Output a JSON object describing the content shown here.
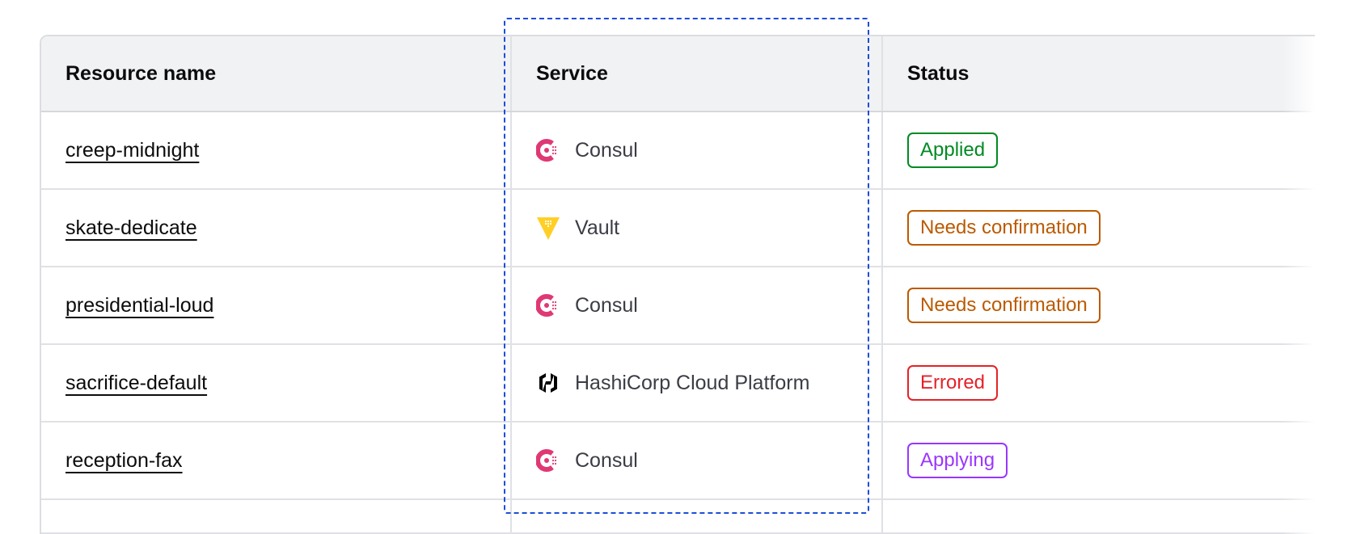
{
  "table": {
    "columns": [
      "Resource name",
      "Service",
      "Status"
    ],
    "rows": [
      {
        "name": "creep-midnight",
        "service": "Consul",
        "service_icon": "consul-icon",
        "status": "Applied",
        "status_color": "#008a22"
      },
      {
        "name": "skate-dedicate",
        "service": "Vault",
        "service_icon": "vault-icon",
        "status": "Needs confirmation",
        "status_color": "#bb5a00"
      },
      {
        "name": "presidential-loud",
        "service": "Consul",
        "service_icon": "consul-icon",
        "status": "Needs confirmation",
        "status_color": "#bb5a00"
      },
      {
        "name": "sacrifice-default",
        "service": "HashiCorp Cloud Platform",
        "service_icon": "hcp-icon",
        "status": "Errored",
        "status_color": "#e52228"
      },
      {
        "name": "reception-fax",
        "service": "Consul",
        "service_icon": "consul-icon",
        "status": "Applying",
        "status_color": "#9a36ff"
      }
    ]
  },
  "colors": {
    "consul": "#e03875",
    "vault": "#ffcf25",
    "hcp": "#000000",
    "selection_outline": "#1d4ed8"
  }
}
